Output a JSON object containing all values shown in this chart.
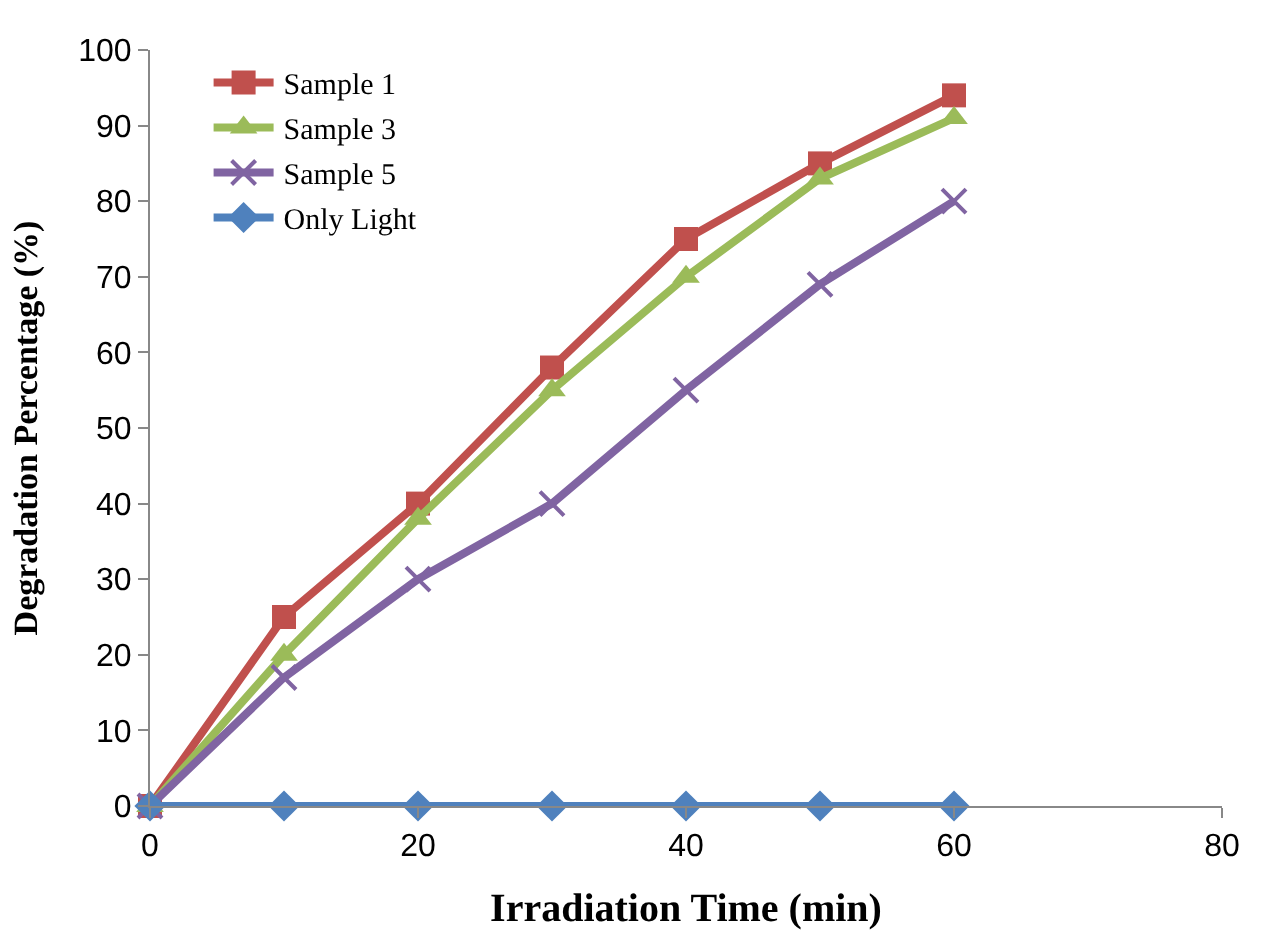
{
  "chart_data": {
    "type": "line",
    "xlabel": "Irradiation Time (min)",
    "ylabel": "Degradation Percentage (%)",
    "x": [
      0,
      10,
      20,
      30,
      40,
      50,
      60
    ],
    "series": [
      {
        "name": "Sample 1",
        "color": "#c0504d",
        "marker": "square",
        "values": [
          0,
          25,
          40,
          58,
          75,
          85,
          94
        ]
      },
      {
        "name": "Sample 3",
        "color": "#9bbb59",
        "marker": "triangle",
        "values": [
          0,
          20,
          38,
          55,
          70,
          83,
          91
        ]
      },
      {
        "name": "Sample 5",
        "color": "#8064a2",
        "marker": "cross",
        "values": [
          0,
          17,
          30,
          40,
          55,
          69,
          80
        ]
      },
      {
        "name": "Only Light",
        "color": "#4f81bd",
        "marker": "diamond",
        "values": [
          0,
          0,
          0,
          0,
          0,
          0,
          0
        ]
      }
    ],
    "xlim": [
      0,
      80
    ],
    "xticks": [
      0,
      20,
      40,
      60,
      80
    ],
    "ylim": [
      0,
      100
    ],
    "yticks": [
      0,
      10,
      20,
      30,
      40,
      50,
      60,
      70,
      80,
      90,
      100
    ],
    "legend": "top left",
    "line_style": "solid"
  }
}
